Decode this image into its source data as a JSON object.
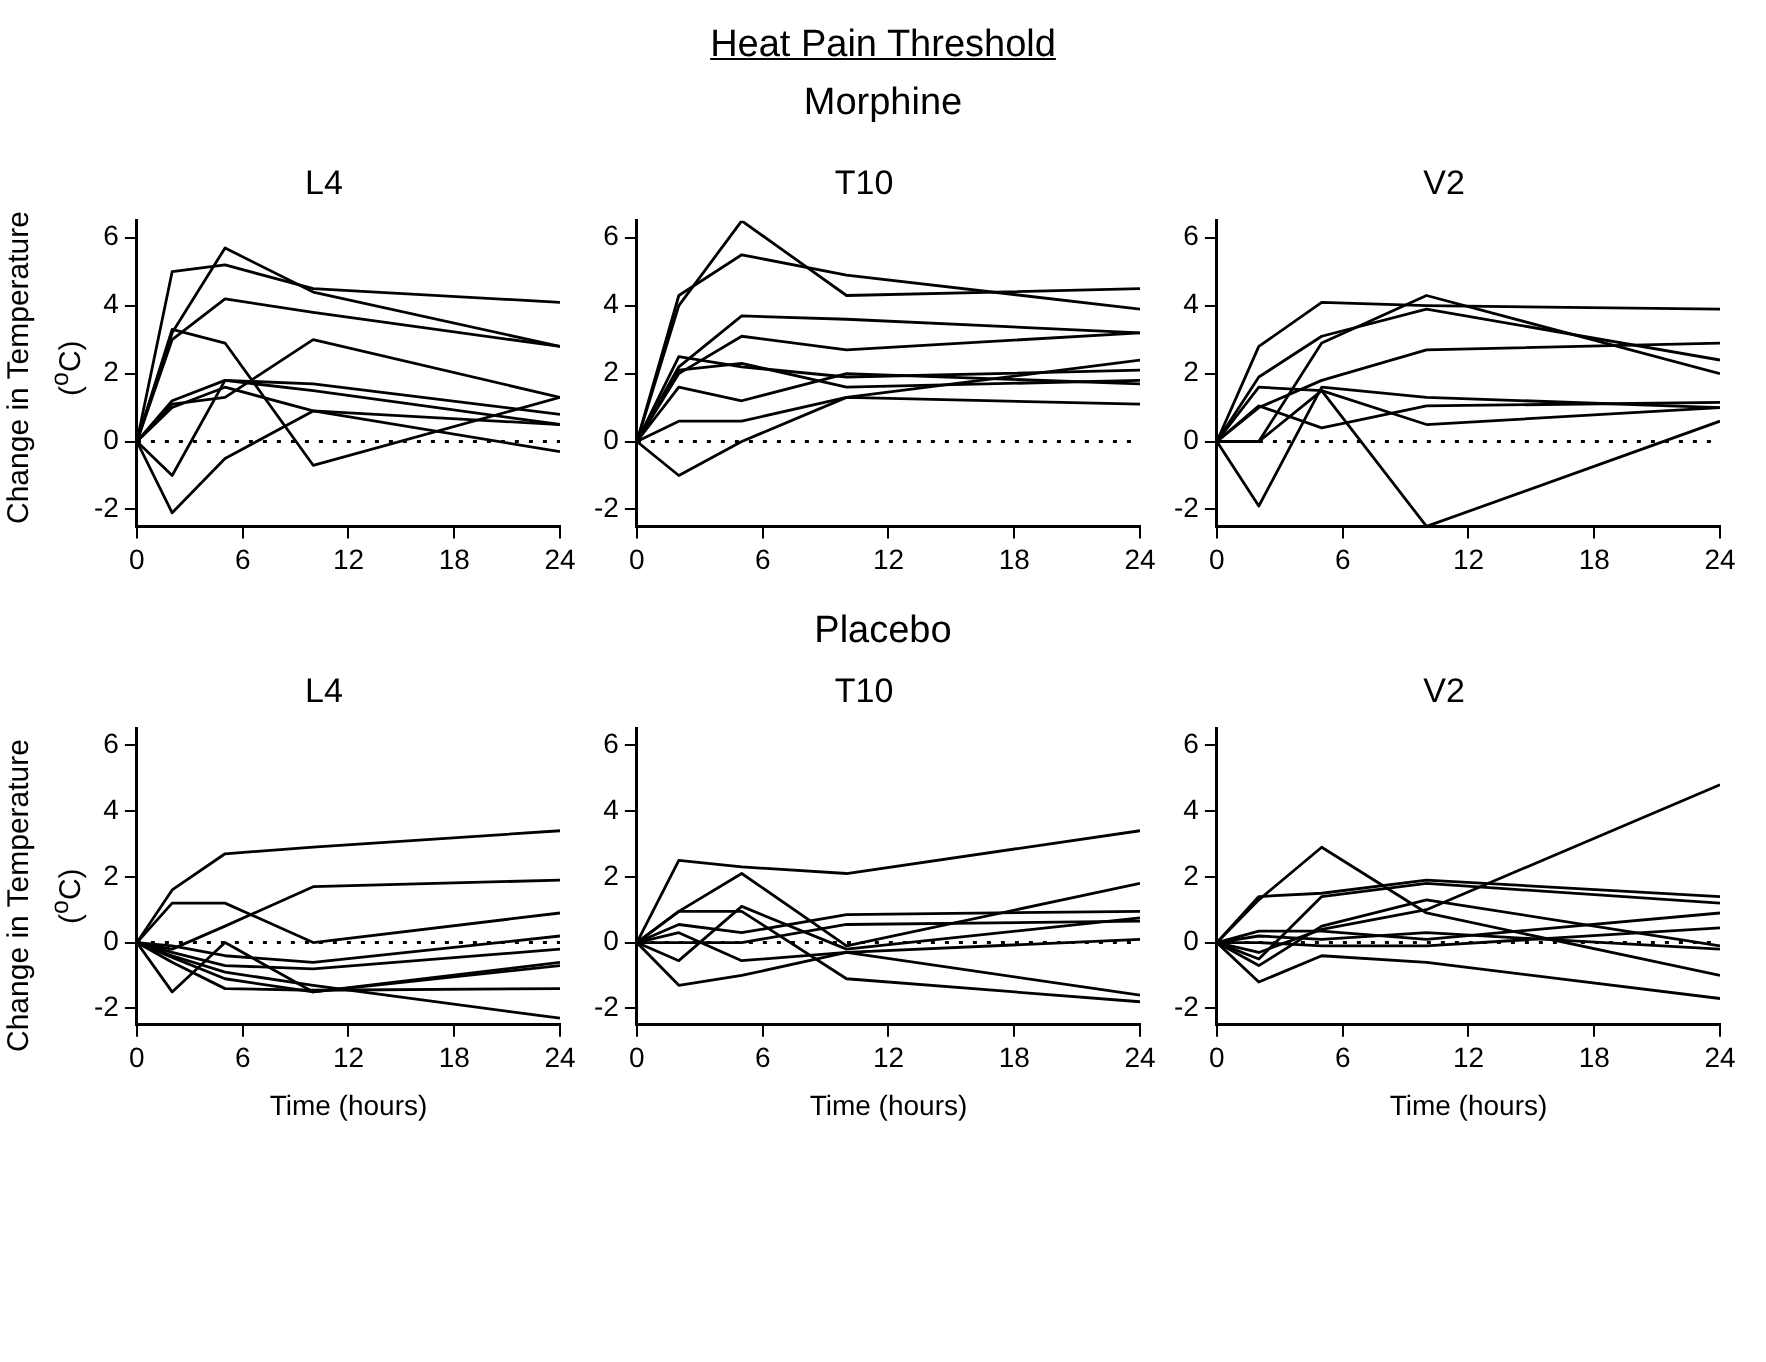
{
  "chart_data": [
    {
      "type": "line",
      "title": "L4",
      "ylabel": "Change in Temperature ($^{o}$C)",
      "annotations": [
        "Heat Pain Threshold",
        "Morphine"
      ],
      "x": [
        0,
        2,
        5,
        10,
        24
      ],
      "xlim": [
        0,
        24
      ],
      "xticks": [
        0,
        6,
        12,
        18,
        24
      ],
      "ylim": [
        -2.5,
        6.5
      ],
      "yticks": [
        -2,
        0,
        2,
        4,
        6
      ],
      "grid": false,
      "legend": false,
      "marker": "none",
      "line_style": "solid",
      "ref_lines": [
        {
          "axis": "y",
          "value": 0,
          "line_style": "dotted",
          "color": "#000000"
        }
      ],
      "series": [
        {
          "color": "#000000",
          "values": [
            0,
            5.0,
            5.2,
            4.5,
            4.1
          ]
        },
        {
          "color": "#000000",
          "values": [
            0,
            3.2,
            5.7,
            4.4,
            2.8
          ]
        },
        {
          "color": "#000000",
          "values": [
            0,
            3.0,
            4.2,
            3.8,
            2.8
          ]
        },
        {
          "color": "#000000",
          "values": [
            0,
            3.3,
            2.9,
            -0.7,
            1.3
          ]
        },
        {
          "color": "#000000",
          "values": [
            0,
            1.1,
            1.3,
            3.0,
            1.3
          ]
        },
        {
          "color": "#000000",
          "values": [
            0,
            -2.1,
            -0.5,
            0.9,
            0.5
          ]
        },
        {
          "color": "#000000",
          "values": [
            0,
            -1.0,
            1.8,
            1.7,
            0.8
          ]
        },
        {
          "color": "#000000",
          "values": [
            0,
            1.2,
            1.8,
            1.5,
            0.5
          ]
        },
        {
          "color": "#000000",
          "values": [
            0,
            1.0,
            1.6,
            0.9,
            -0.3
          ]
        }
      ]
    },
    {
      "type": "line",
      "title": "T10",
      "x": [
        0,
        2,
        5,
        10,
        24
      ],
      "xlim": [
        0,
        24
      ],
      "xticks": [
        0,
        6,
        12,
        18,
        24
      ],
      "ylim": [
        -2.5,
        6.5
      ],
      "yticks": [
        -2,
        0,
        2,
        4,
        6
      ],
      "grid": false,
      "legend": false,
      "marker": "none",
      "line_style": "solid",
      "ref_lines": [
        {
          "axis": "y",
          "value": 0,
          "line_style": "dotted",
          "color": "#000000"
        }
      ],
      "series": [
        {
          "color": "#000000",
          "values": [
            0,
            4.0,
            6.5,
            4.3,
            4.5
          ]
        },
        {
          "color": "#000000",
          "values": [
            0,
            4.3,
            5.5,
            4.9,
            3.9
          ]
        },
        {
          "color": "#000000",
          "values": [
            0,
            2.2,
            3.7,
            3.6,
            3.2
          ]
        },
        {
          "color": "#000000",
          "values": [
            0,
            2.0,
            3.1,
            2.7,
            3.2
          ]
        },
        {
          "color": "#000000",
          "values": [
            0,
            1.6,
            1.2,
            2.0,
            1.7
          ]
        },
        {
          "color": "#000000",
          "values": [
            0,
            0.6,
            0.6,
            1.3,
            1.1
          ]
        },
        {
          "color": "#000000",
          "values": [
            0,
            -1.0,
            0,
            1.3,
            2.4
          ]
        },
        {
          "color": "#000000",
          "values": [
            0,
            2.1,
            2.3,
            1.6,
            1.8
          ]
        },
        {
          "color": "#000000",
          "values": [
            0,
            2.5,
            2.2,
            1.9,
            2.1
          ]
        }
      ]
    },
    {
      "type": "line",
      "title": "V2",
      "x": [
        0,
        2,
        5,
        10,
        24
      ],
      "xlim": [
        0,
        24
      ],
      "xticks": [
        0,
        6,
        12,
        18,
        24
      ],
      "ylim": [
        -2.5,
        6.5
      ],
      "yticks": [
        -2,
        0,
        2,
        4,
        6
      ],
      "grid": false,
      "legend": false,
      "marker": "none",
      "line_style": "solid",
      "ref_lines": [
        {
          "axis": "y",
          "value": 0,
          "line_style": "dotted",
          "color": "#000000"
        }
      ],
      "series": [
        {
          "color": "#000000",
          "values": [
            0,
            2.8,
            4.1,
            4.0,
            3.9
          ]
        },
        {
          "color": "#000000",
          "values": [
            0,
            1.9,
            3.1,
            3.9,
            2.4
          ]
        },
        {
          "color": "#000000",
          "values": [
            0,
            0,
            2.9,
            4.3,
            2.0
          ]
        },
        {
          "color": "#000000",
          "values": [
            0,
            1.0,
            1.8,
            2.7,
            2.9
          ]
        },
        {
          "color": "#000000",
          "values": [
            0,
            -1.9,
            1.6,
            1.3,
            1.0
          ]
        },
        {
          "color": "#000000",
          "values": [
            0,
            1.6,
            1.5,
            -2.5,
            0.6
          ]
        },
        {
          "color": "#000000",
          "values": [
            0,
            1.05,
            0.4,
            1.05,
            1.15
          ]
        },
        {
          "color": "#000000",
          "values": [
            0,
            0,
            1.5,
            0.5,
            1.0
          ]
        }
      ]
    },
    {
      "type": "line",
      "title": "L4",
      "ylabel": "Change in Temperature ($^{o}$C)",
      "xlabel": "Time (hours)",
      "annotations": [
        "Placebo"
      ],
      "x": [
        0,
        2,
        5,
        10,
        24
      ],
      "xlim": [
        0,
        24
      ],
      "xticks": [
        0,
        6,
        12,
        18,
        24
      ],
      "ylim": [
        -2.5,
        6.5
      ],
      "yticks": [
        -2,
        0,
        2,
        4,
        6
      ],
      "grid": false,
      "legend": false,
      "marker": "none",
      "line_style": "solid",
      "ref_lines": [
        {
          "axis": "y",
          "value": 0,
          "line_style": "dotted",
          "color": "#000000"
        }
      ],
      "series": [
        {
          "color": "#000000",
          "values": [
            0,
            1.6,
            2.7,
            2.9,
            3.4
          ]
        },
        {
          "color": "#000000",
          "values": [
            0,
            1.2,
            1.2,
            0,
            0.9
          ]
        },
        {
          "color": "#000000",
          "values": [
            0,
            -0.2,
            0.5,
            1.7,
            1.9
          ]
        },
        {
          "color": "#000000",
          "values": [
            0,
            -1.5,
            0,
            -1.5,
            -0.6
          ]
        },
        {
          "color": "#000000",
          "values": [
            0,
            -0.1,
            -0.4,
            -0.6,
            0.2
          ]
        },
        {
          "color": "#000000",
          "values": [
            0,
            -0.3,
            -0.7,
            -0.8,
            -0.2
          ]
        },
        {
          "color": "#000000",
          "values": [
            0,
            -0.45,
            -1.1,
            -1.5,
            -0.7
          ]
        },
        {
          "color": "#000000",
          "values": [
            0,
            -0.6,
            -1.4,
            -1.45,
            -1.4
          ]
        },
        {
          "color": "#000000",
          "values": [
            0,
            -0.4,
            -0.9,
            -1.3,
            -2.3
          ]
        }
      ]
    },
    {
      "type": "line",
      "title": "T10",
      "xlabel": "Time (hours)",
      "x": [
        0,
        2,
        5,
        10,
        24
      ],
      "xlim": [
        0,
        24
      ],
      "xticks": [
        0,
        6,
        12,
        18,
        24
      ],
      "ylim": [
        -2.5,
        6.5
      ],
      "yticks": [
        -2,
        0,
        2,
        4,
        6
      ],
      "grid": false,
      "legend": false,
      "marker": "none",
      "line_style": "solid",
      "ref_lines": [
        {
          "axis": "y",
          "value": 0,
          "line_style": "dotted",
          "color": "#000000"
        }
      ],
      "series": [
        {
          "color": "#000000",
          "values": [
            0,
            2.5,
            2.3,
            2.1,
            3.4
          ]
        },
        {
          "color": "#000000",
          "values": [
            0,
            0.95,
            2.1,
            -0.1,
            1.8
          ]
        },
        {
          "color": "#000000",
          "values": [
            0,
            0.95,
            0.95,
            -1.1,
            -1.8
          ]
        },
        {
          "color": "#000000",
          "values": [
            0,
            -1.3,
            -1.0,
            -0.3,
            -1.6
          ]
        },
        {
          "color": "#000000",
          "values": [
            0,
            -0.55,
            1.1,
            -0.2,
            0.75
          ]
        },
        {
          "color": "#000000",
          "values": [
            0,
            0.55,
            0.3,
            0.85,
            0.95
          ]
        },
        {
          "color": "#000000",
          "values": [
            0,
            0,
            0,
            0.55,
            0.65
          ]
        },
        {
          "color": "#000000",
          "values": [
            0,
            0.3,
            -0.55,
            -0.3,
            0.1
          ]
        }
      ]
    },
    {
      "type": "line",
      "title": "V2",
      "xlabel": "Time (hours)",
      "x": [
        0,
        2,
        5,
        10,
        24
      ],
      "xlim": [
        0,
        24
      ],
      "xticks": [
        0,
        6,
        12,
        18,
        24
      ],
      "ylim": [
        -2.5,
        6.5
      ],
      "yticks": [
        -2,
        0,
        2,
        4,
        6
      ],
      "grid": false,
      "legend": false,
      "marker": "none",
      "line_style": "solid",
      "ref_lines": [
        {
          "axis": "y",
          "value": 0,
          "line_style": "dotted",
          "color": "#000000"
        }
      ],
      "series": [
        {
          "color": "#000000",
          "values": [
            0,
            -0.3,
            0.4,
            1.0,
            4.8
          ]
        },
        {
          "color": "#000000",
          "values": [
            0,
            1.4,
            1.5,
            1.9,
            1.4
          ]
        },
        {
          "color": "#000000",
          "values": [
            0,
            1.3,
            2.9,
            0.9,
            -1.0
          ]
        },
        {
          "color": "#000000",
          "values": [
            0,
            -1.2,
            -0.4,
            -0.6,
            -1.7
          ]
        },
        {
          "color": "#000000",
          "values": [
            0,
            -0.5,
            1.4,
            1.8,
            1.2
          ]
        },
        {
          "color": "#000000",
          "values": [
            0,
            -0.7,
            0.5,
            1.3,
            -0.1
          ]
        },
        {
          "color": "#000000",
          "values": [
            0,
            0.35,
            0.35,
            0.1,
            0.9
          ]
        },
        {
          "color": "#000000",
          "values": [
            0,
            0,
            -0.1,
            -0.1,
            0.45
          ]
        },
        {
          "color": "#000000",
          "values": [
            0,
            0.2,
            0.1,
            0.3,
            -0.2
          ]
        }
      ]
    }
  ]
}
